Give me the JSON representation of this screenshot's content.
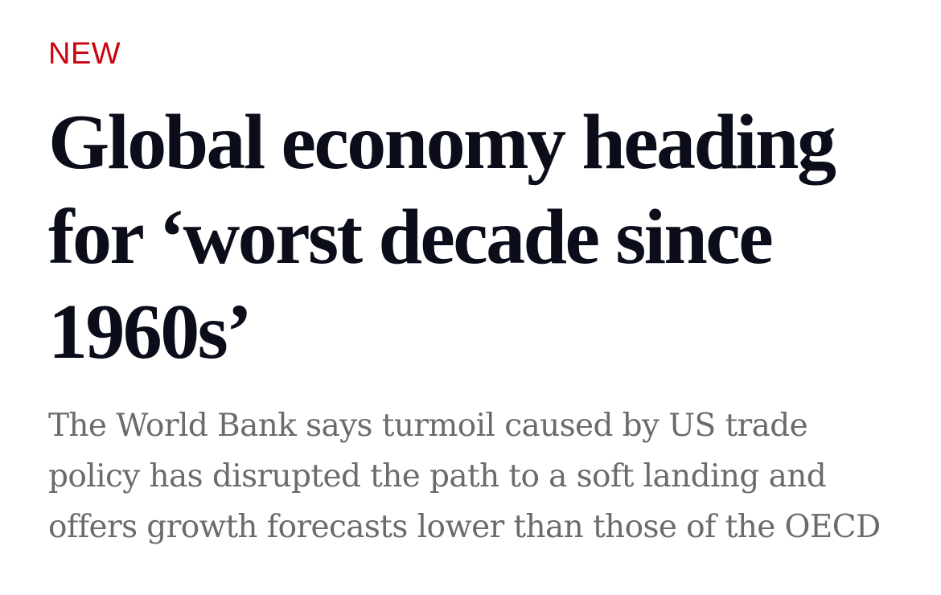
{
  "article": {
    "label": "NEW",
    "headline": "Global economy heading for ‘worst decade since 1960s’",
    "standfirst": "The World Bank says turmoil caused by US trade policy has disrupted the path to a soft landing and offers growth forecasts lower than those of the OECD"
  },
  "colors": {
    "label": "#c8040e",
    "headline": "#0b0e1a",
    "standfirst": "#6b6b6b",
    "background": "#ffffff"
  }
}
